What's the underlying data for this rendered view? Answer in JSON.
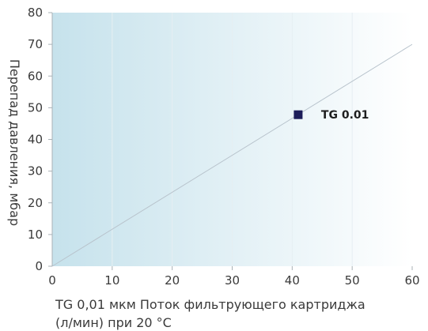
{
  "chart_data": {
    "type": "line",
    "xlabel": "TG 0,01 мкм Поток фильтрующего картриджа",
    "xlabel_line2": "(л/мин) при 20 °C",
    "ylabel": "Перепад давления, мбар",
    "xlim": [
      0,
      60
    ],
    "ylim": [
      0,
      80
    ],
    "x_ticks": [
      "0",
      "10",
      "20",
      "30",
      "40",
      "50",
      "60"
    ],
    "y_ticks": [
      "0",
      "10",
      "20",
      "30",
      "40",
      "50",
      "60",
      "70",
      "80"
    ],
    "grid": "vertical",
    "series": [
      {
        "name": "TG 0.01",
        "x": [
          0,
          60
        ],
        "y": [
          0,
          70
        ],
        "color": "#b8c3cc"
      }
    ],
    "markers": [
      {
        "label": "TG 0.01",
        "x": 41,
        "y": 47.8,
        "color": "#1c1d5a"
      }
    ],
    "background_gradient": [
      "#c6e2ec",
      "#ffffff"
    ]
  }
}
